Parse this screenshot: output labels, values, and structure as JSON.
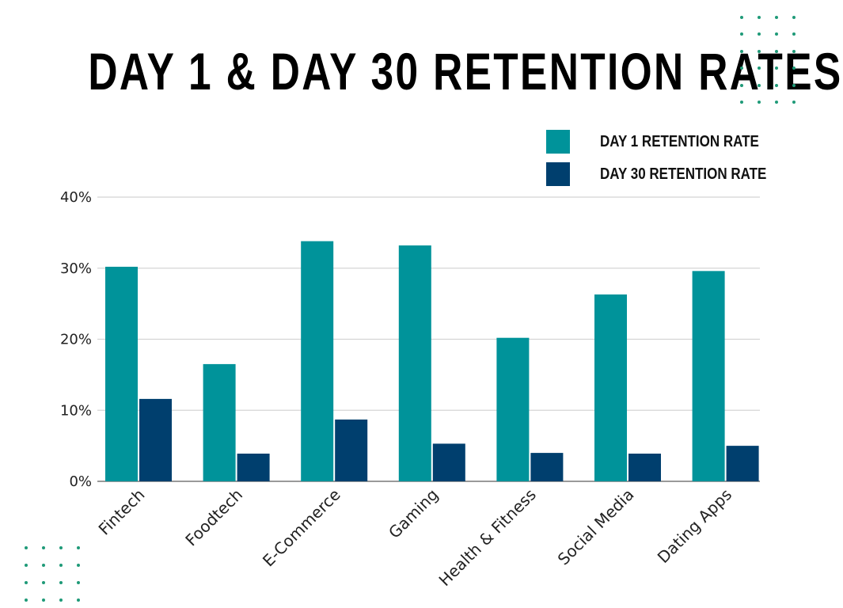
{
  "chart_data": {
    "type": "bar",
    "title": "DAY 1 & DAY 30 RETENTION RATES",
    "categories": [
      "Fintech",
      "Foodtech",
      "E-Commerce",
      "Gaming",
      "Health & Fitness",
      "Social Media",
      "Dating Apps"
    ],
    "series": [
      {
        "name": "DAY 1 RETENTION RATE",
        "color": "#00939a",
        "values": [
          30.2,
          16.5,
          33.8,
          33.2,
          20.2,
          26.3,
          29.6
        ]
      },
      {
        "name": "DAY 30 RETENTION RATE",
        "color": "#003f6e",
        "values": [
          11.6,
          3.9,
          8.7,
          5.3,
          4.0,
          3.9,
          5.0
        ]
      }
    ],
    "ylim": [
      0,
      40
    ],
    "yticks": [
      "0%",
      "10%",
      "20%",
      "30%",
      "40%"
    ],
    "xlabel": "",
    "ylabel": "",
    "grid": true,
    "legend_position": "top-right"
  }
}
